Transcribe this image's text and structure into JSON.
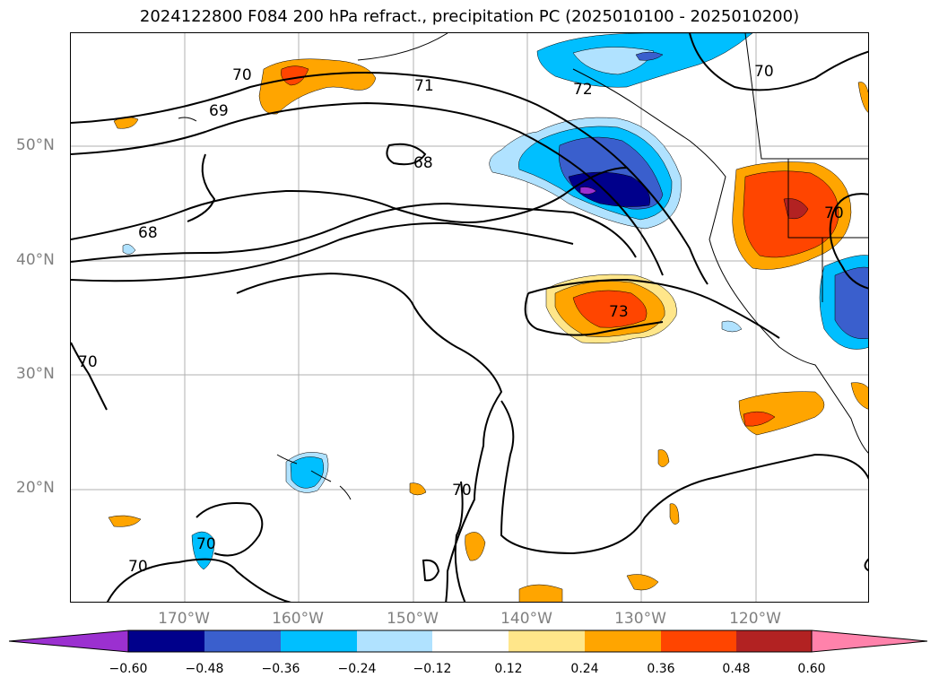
{
  "title": "2024122800 F084 200 hPa refract., precipitation PC (2025010100 - 2025010200)",
  "latitude_labels": [
    "50°N",
    "40°N",
    "30°N",
    "20°N"
  ],
  "longitude_labels": [
    "170°W",
    "160°W",
    "150°W",
    "140°W",
    "130°W",
    "120°W"
  ],
  "contour_labels": [
    "70",
    "71",
    "72",
    "69",
    "68",
    "68",
    "70",
    "73",
    "70",
    "70",
    "70",
    "70",
    "70"
  ],
  "colorbar": {
    "ticks": [
      "−0.60",
      "−0.48",
      "−0.36",
      "−0.24",
      "−0.12",
      "0.12",
      "0.24",
      "0.36",
      "0.48",
      "0.60"
    ],
    "colors": [
      "#9b30d0",
      "#00008b",
      "#3a5fcd",
      "#00bfff",
      "#b0e2ff",
      "#ffffff",
      "#ffe68a",
      "#ffa500",
      "#ff4500",
      "#b22222",
      "#ff82ab"
    ]
  }
}
